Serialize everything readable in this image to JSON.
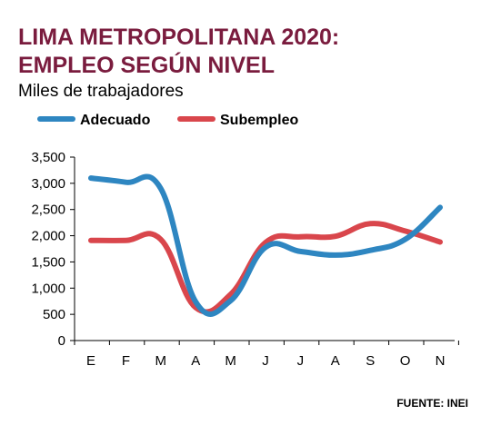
{
  "header": {
    "title_line1": "LIMA METROPOLITANA 2020:",
    "title_line2": "EMPLEO SEGÚN NIVEL",
    "subtitle": "Miles de trabajadores"
  },
  "source": "FUENTE: INEI",
  "colors": {
    "title": "#7a1c3e",
    "adecuado": "#2e86c1",
    "subempleo": "#d9464c",
    "axis": "#000000"
  },
  "chart_data": {
    "type": "line",
    "title": "LIMA METROPOLITANA 2020: EMPLEO SEGÚN NIVEL",
    "subtitle": "Miles de trabajadores",
    "categories": [
      "E",
      "F",
      "M",
      "A",
      "M",
      "J",
      "J",
      "A",
      "S",
      "O",
      "N"
    ],
    "yticks": [
      0,
      500,
      1000,
      1500,
      2000,
      2500,
      3000,
      3500
    ],
    "ytick_labels": [
      "0",
      "500",
      "1,000",
      "1,500",
      "2,000",
      "2,500",
      "3,000",
      "3,500"
    ],
    "ylim": [
      0,
      3500
    ],
    "legend_position": "top-left",
    "grid": false,
    "series": [
      {
        "name": "Adecuado",
        "color": "#2e86c1",
        "values": [
          3100,
          3020,
          2900,
          740,
          760,
          1780,
          1700,
          1630,
          1720,
          1930,
          2540
        ]
      },
      {
        "name": "Subempleo",
        "color": "#d9464c",
        "values": [
          1910,
          1910,
          1930,
          630,
          880,
          1870,
          1980,
          1990,
          2230,
          2090,
          1880
        ]
      }
    ]
  }
}
